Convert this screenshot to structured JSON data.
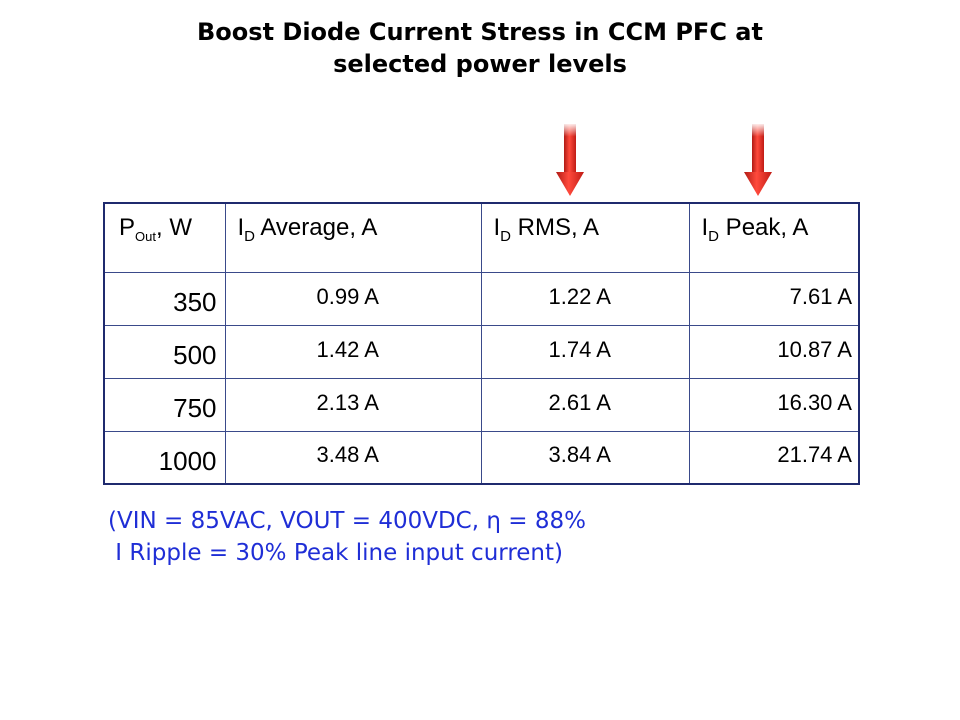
{
  "title": {
    "line1": "Boost Diode Current Stress in CCM PFC at",
    "line2": "selected power levels"
  },
  "arrows": {
    "color": "#e8231c",
    "targets": [
      "I_D RMS, A",
      "I_D Peak, A"
    ]
  },
  "table": {
    "headers": [
      {
        "main": "P",
        "sub": "Out",
        "rest": ", W"
      },
      {
        "main": "I",
        "sub": "D",
        "rest": " Average, A"
      },
      {
        "main": "I",
        "sub": "D",
        "rest": " RMS, A"
      },
      {
        "main": "I",
        "sub": "D",
        "rest": " Peak, A"
      }
    ],
    "rows": [
      {
        "pout": "350",
        "avg": "0.99 A",
        "rms": "1.22 A",
        "peak": "7.61 A"
      },
      {
        "pout": "500",
        "avg": "1.42 A",
        "rms": "1.74 A",
        "peak": "10.87 A"
      },
      {
        "pout": "750",
        "avg": "2.13 A",
        "rms": "2.61 A",
        "peak": "16.30 A"
      },
      {
        "pout": "1000",
        "avg": "3.48 A",
        "rms": "3.84 A",
        "peak": "21.74 A"
      }
    ]
  },
  "note": {
    "line1": "(VIN = 85VAC, VOUT = 400VDC, η = 88%",
    "line2": " I Ripple = 30% Peak line input current)"
  },
  "colors": {
    "note": "#1f2ed6",
    "table_border": "#1f2a6e"
  }
}
